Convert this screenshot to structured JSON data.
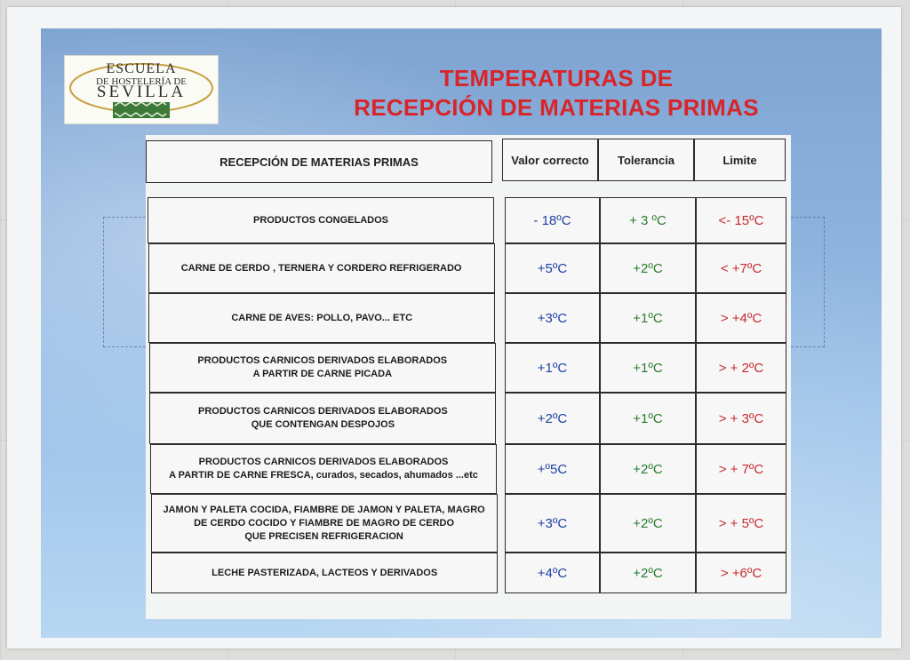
{
  "logo": {
    "line1": "ESCUELA",
    "line2": "DE HOSTELERÍA DE",
    "line3": "SEVILLA"
  },
  "title": {
    "line1": "TEMPERATURAS DE",
    "line2": "RECEPCIÓN DE MATERIAS PRIMAS"
  },
  "table": {
    "headers": {
      "product": "RECEPCIÓN DE MATERIAS PRIMAS",
      "correct": "Valor correcto",
      "tolerance": "Tolerancia",
      "limit": "Limite"
    },
    "rows": [
      {
        "product": [
          "PRODUCTOS CONGELADOS"
        ],
        "correct": "- 18ºC",
        "tolerance": "+ 3 ºC",
        "limit": "<- 15ºC"
      },
      {
        "product": [
          "CARNE DE CERDO , TERNERA Y CORDERO REFRIGERADO"
        ],
        "correct": "+5ºC",
        "tolerance": "+2ºC",
        "limit": "< +7ºC"
      },
      {
        "product": [
          "CARNE DE AVES: POLLO, PAVO... ETC"
        ],
        "correct": "+3ºC",
        "tolerance": "+1ºC",
        "limit": "> +4ºC"
      },
      {
        "product": [
          "PRODUCTOS CARNICOS DERIVADOS  ELABORADOS",
          "A PARTIR DE CARNE PICADA"
        ],
        "correct": "+1ºC",
        "tolerance": "+1ºC",
        "limit": "> + 2ºC"
      },
      {
        "product": [
          "PRODUCTOS CARNICOS DERIVADOS  ELABORADOS",
          "QUE CONTENGAN DESPOJOS"
        ],
        "correct": "+2ºC",
        "tolerance": "+1ºC",
        "limit": "> + 3ºC"
      },
      {
        "product": [
          "PRODUCTOS CARNICOS DERIVADOS  ELABORADOS",
          "A PARTIR DE CARNE FRESCA, curados, secados, ahumados ...etc"
        ],
        "correct": "+º5C",
        "tolerance": "+2ºC",
        "limit": "> + 7ºC"
      },
      {
        "product": [
          "JAMON Y PALETA COCIDA, FIAMBRE DE JAMON Y PALETA, MAGRO",
          "DE CERDO COCIDO Y FIAMBRE DE MAGRO DE CERDO",
          "QUE PRECISEN REFRIGERACION"
        ],
        "correct": "+3ºC",
        "tolerance": "+2ºC",
        "limit": "> + 5ºC"
      },
      {
        "product": [
          "LECHE PASTERIZADA, LACTEOS Y DERIVADOS"
        ],
        "correct": "+4ºC",
        "tolerance": "+2ºC",
        "limit": "> +6ºC"
      }
    ]
  },
  "colors": {
    "title": "#d8252a",
    "correct_value": "#1d3fa3",
    "tolerance_value": "#2b7a2e",
    "limit_value": "#c62a2f"
  }
}
